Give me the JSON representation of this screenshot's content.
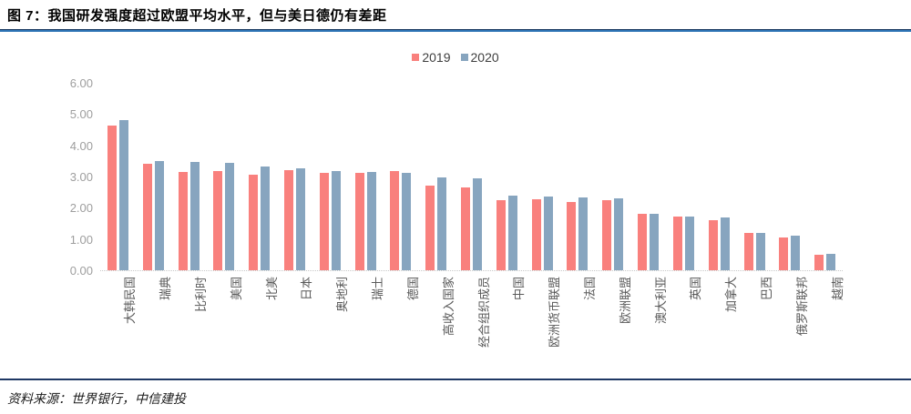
{
  "title": "图 7：我国研发强度超过欧盟平均水平，但与美日德仍有差距",
  "source": "资料来源：世界银行，中信建投",
  "colors": {
    "series_2019": "#F9807D",
    "series_2020": "#87A5BF",
    "top_rule": "#2E75B6",
    "bottom_rule": "#1F3864",
    "y_tick_text": "#9E9E9E",
    "x_tick_text": "#595959"
  },
  "chart_data": {
    "type": "bar",
    "title": "图 7：我国研发强度超过欧盟平均水平，但与美日德仍有差距",
    "xlabel": "",
    "ylabel": "",
    "ylim": [
      0,
      6
    ],
    "yticks": [
      "6.00",
      "5.00",
      "4.00",
      "3.00",
      "2.00",
      "1.00",
      "0.00"
    ],
    "grid": false,
    "legend_position": "top-center",
    "categories": [
      "大韩民国",
      "瑞典",
      "比利时",
      "美国",
      "北美",
      "日本",
      "奥地利",
      "瑞士",
      "德国",
      "高收入国家",
      "经合组织成员",
      "中国",
      "欧洲货币联盟",
      "法国",
      "欧洲联盟",
      "澳大利亚",
      "英国",
      "加拿大",
      "巴西",
      "俄罗斯联邦",
      "越南"
    ],
    "series": [
      {
        "name": "2019",
        "color": "#F9807D",
        "values": [
          4.63,
          3.4,
          3.16,
          3.17,
          3.07,
          3.2,
          3.12,
          3.13,
          3.17,
          2.7,
          2.65,
          2.24,
          2.26,
          2.19,
          2.23,
          1.8,
          1.71,
          1.59,
          1.21,
          1.04,
          0.5
        ]
      },
      {
        "name": "2020",
        "color": "#87A5BF",
        "values": [
          4.81,
          3.51,
          3.48,
          3.45,
          3.32,
          3.26,
          3.19,
          3.15,
          3.13,
          2.97,
          2.94,
          2.4,
          2.35,
          2.34,
          2.31,
          1.82,
          1.71,
          1.7,
          1.21,
          1.1,
          0.53
        ]
      }
    ]
  }
}
